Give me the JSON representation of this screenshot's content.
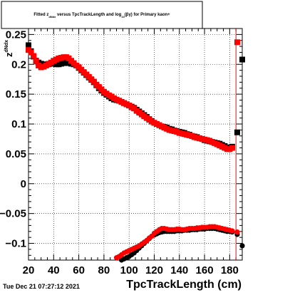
{
  "chart_data": {
    "type": "scatter",
    "title_parts": {
      "pre": "Fitted  z",
      "sub1": "dNdx",
      "mid": "  versus TpcTrackLength and log",
      "sub2": "10",
      "post": "(βγ) for Primary kaon+"
    },
    "xlabel": "TpcTrackLength (cm)",
    "ylabel": "z",
    "ylabel_sup": "dNdx",
    "xlim": [
      20,
      190
    ],
    "ylim": [
      -0.128,
      0.26
    ],
    "x_ticks": [
      20,
      40,
      60,
      80,
      100,
      120,
      140,
      160,
      180
    ],
    "x_tick_labels": [
      "20",
      "40",
      "60",
      "80",
      "100",
      "120",
      "140",
      "160",
      "180"
    ],
    "y_ticks": [
      -0.1,
      -0.05,
      0,
      0.05,
      0.1,
      0.15,
      0.2,
      0.25
    ],
    "y_tick_labels": [
      "−0.1",
      "−0.05",
      "0",
      "0.05",
      "0.1",
      "0.15",
      "0.2",
      "0.25"
    ],
    "grid": true,
    "vertical_line_x": 185,
    "timestamp": "Tue Dec 21 07:27:12 2021",
    "colors": {
      "black": "#000000",
      "red": "#ff0000"
    },
    "series": [
      {
        "marker": "square-black-upper",
        "color": "#000000",
        "x": [
          20,
          22,
          24,
          26,
          28,
          30,
          32,
          34,
          36,
          38,
          40,
          42,
          44,
          46,
          48,
          50,
          52,
          54,
          56,
          58,
          60,
          62,
          64,
          66,
          68,
          70,
          72,
          74,
          76,
          78,
          80,
          82,
          84,
          86,
          88,
          90,
          92,
          94,
          96,
          98,
          100,
          102,
          104,
          106,
          108,
          110,
          112,
          114,
          116,
          118,
          120,
          122,
          124,
          126,
          128,
          130,
          132,
          134,
          136,
          138,
          140,
          142,
          144,
          146,
          148,
          150,
          152,
          154,
          156,
          158,
          160,
          162,
          164,
          166,
          168,
          170,
          172,
          174,
          176,
          178,
          180,
          182,
          186,
          190
        ],
        "y": [
          0.232,
          0.222,
          0.213,
          0.206,
          0.203,
          0.201,
          0.2,
          0.199,
          0.2,
          0.201,
          0.201,
          0.2,
          0.2,
          0.201,
          0.202,
          0.203,
          0.202,
          0.201,
          0.2,
          0.198,
          0.194,
          0.19,
          0.186,
          0.182,
          0.178,
          0.174,
          0.17,
          0.165,
          0.16,
          0.156,
          0.152,
          0.149,
          0.146,
          0.143,
          0.141,
          0.14,
          0.139,
          0.137,
          0.135,
          0.133,
          0.131,
          0.129,
          0.127,
          0.124,
          0.121,
          0.118,
          0.115,
          0.112,
          0.108,
          0.105,
          0.102,
          0.1,
          0.098,
          0.096,
          0.095,
          0.094,
          0.092,
          0.091,
          0.089,
          0.088,
          0.087,
          0.086,
          0.085,
          0.083,
          0.082,
          0.08,
          0.079,
          0.078,
          0.076,
          0.075,
          0.073,
          0.072,
          0.071,
          0.07,
          0.069,
          0.068,
          0.067,
          0.065,
          0.063,
          0.061,
          0.06,
          0.062,
          0.086,
          0.208
        ]
      },
      {
        "marker": "square-red-upper",
        "color": "#ff0000",
        "x": [
          20,
          22,
          24,
          26,
          28,
          30,
          32,
          34,
          36,
          38,
          40,
          42,
          44,
          46,
          48,
          50,
          52,
          54,
          56,
          58,
          60,
          62,
          64,
          66,
          68,
          70,
          72,
          74,
          76,
          78,
          80,
          82,
          84,
          86,
          88,
          90,
          92,
          94,
          96,
          98,
          100,
          102,
          104,
          106,
          108,
          110,
          112,
          114,
          116,
          118,
          120,
          122,
          124,
          126,
          128,
          130,
          132,
          134,
          136,
          138,
          140,
          142,
          144,
          146,
          148,
          150,
          152,
          154,
          156,
          158,
          160,
          162,
          164,
          166,
          168,
          170,
          172,
          174,
          176,
          178,
          180,
          182,
          186
        ],
        "y": [
          0.224,
          0.22,
          0.214,
          0.205,
          0.198,
          0.195,
          0.196,
          0.198,
          0.201,
          0.203,
          0.206,
          0.208,
          0.21,
          0.211,
          0.212,
          0.212,
          0.21,
          0.206,
          0.202,
          0.198,
          0.195,
          0.191,
          0.187,
          0.183,
          0.179,
          0.175,
          0.171,
          0.166,
          0.162,
          0.158,
          0.154,
          0.151,
          0.148,
          0.146,
          0.143,
          0.141,
          0.139,
          0.137,
          0.135,
          0.133,
          0.131,
          0.128,
          0.126,
          0.122,
          0.119,
          0.116,
          0.113,
          0.11,
          0.107,
          0.104,
          0.102,
          0.1,
          0.098,
          0.096,
          0.094,
          0.092,
          0.09,
          0.089,
          0.088,
          0.087,
          0.085,
          0.084,
          0.083,
          0.082,
          0.081,
          0.08,
          0.078,
          0.077,
          0.076,
          0.075,
          0.074,
          0.073,
          0.072,
          0.07,
          0.068,
          0.066,
          0.064,
          0.062,
          0.06,
          0.058,
          0.058,
          0.06,
          0.237
        ]
      },
      {
        "marker": "circle-black-lower",
        "color": "#000000",
        "x": [
          90,
          92,
          94,
          96,
          98,
          100,
          102,
          104,
          106,
          108,
          110,
          112,
          114,
          116,
          118,
          120,
          122,
          124,
          126,
          128,
          130,
          132,
          134,
          136,
          138,
          140,
          142,
          144,
          146,
          148,
          150,
          152,
          154,
          156,
          158,
          160,
          162,
          164,
          166,
          168,
          170,
          172,
          174,
          176,
          178,
          180,
          182,
          186,
          190
        ],
        "y": [
          -0.132,
          -0.13,
          -0.128,
          -0.126,
          -0.124,
          -0.122,
          -0.119,
          -0.116,
          -0.112,
          -0.108,
          -0.104,
          -0.1,
          -0.096,
          -0.092,
          -0.088,
          -0.086,
          -0.084,
          -0.082,
          -0.081,
          -0.08,
          -0.08,
          -0.08,
          -0.08,
          -0.08,
          -0.079,
          -0.079,
          -0.079,
          -0.078,
          -0.078,
          -0.078,
          -0.077,
          -0.077,
          -0.077,
          -0.076,
          -0.076,
          -0.076,
          -0.075,
          -0.075,
          -0.075,
          -0.075,
          -0.076,
          -0.077,
          -0.078,
          -0.079,
          -0.08,
          -0.08,
          -0.081,
          -0.085,
          -0.104
        ]
      },
      {
        "marker": "circle-red-lower",
        "color": "#ff0000",
        "x": [
          90,
          92,
          94,
          96,
          98,
          100,
          102,
          104,
          106,
          108,
          110,
          112,
          114,
          116,
          118,
          120,
          122,
          124,
          126,
          128,
          130,
          132,
          134,
          136,
          138,
          140,
          142,
          144,
          146,
          148,
          150,
          152,
          154,
          156,
          158,
          160,
          162,
          164,
          166,
          168,
          170,
          172,
          174,
          176,
          178,
          180,
          182,
          186
        ],
        "y": [
          -0.124,
          -0.122,
          -0.119,
          -0.116,
          -0.114,
          -0.112,
          -0.11,
          -0.108,
          -0.106,
          -0.104,
          -0.101,
          -0.098,
          -0.095,
          -0.091,
          -0.088,
          -0.083,
          -0.08,
          -0.077,
          -0.075,
          -0.075,
          -0.076,
          -0.077,
          -0.077,
          -0.077,
          -0.076,
          -0.076,
          -0.077,
          -0.077,
          -0.076,
          -0.075,
          -0.075,
          -0.075,
          -0.074,
          -0.074,
          -0.073,
          -0.073,
          -0.073,
          -0.072,
          -0.072,
          -0.072,
          -0.073,
          -0.074,
          -0.075,
          -0.076,
          -0.077,
          -0.078,
          -0.079,
          -0.081
        ]
      }
    ]
  }
}
